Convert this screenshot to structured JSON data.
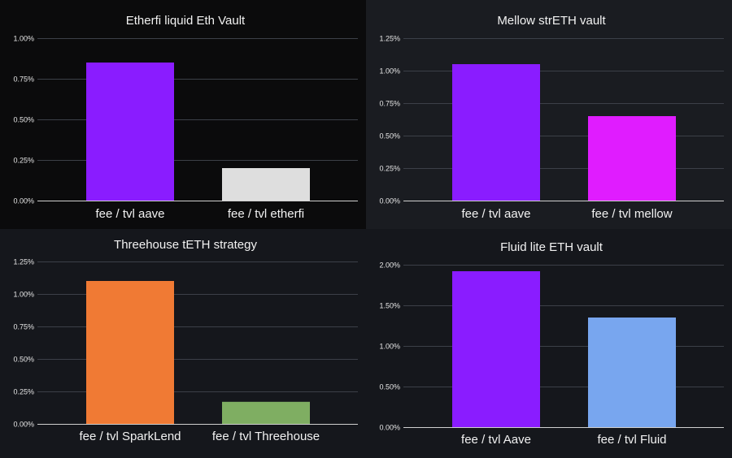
{
  "chart_data": [
    {
      "type": "bar",
      "title": "Etherfi liquid Eth Vault",
      "categories": [
        "fee / tvl aave",
        "fee / tvl etherfi"
      ],
      "values": [
        0.85,
        0.2
      ],
      "colors": [
        "#8a1cff",
        "#dedede"
      ],
      "ylim": [
        0,
        1.0
      ],
      "yticks": [
        "0.00%",
        "0.25%",
        "0.50%",
        "0.75%",
        "1.00%"
      ],
      "xlabel": "",
      "ylabel": "",
      "grid": true,
      "legend": "none"
    },
    {
      "type": "bar",
      "title": "Mellow strETH vault",
      "categories": [
        "fee / tvl aave",
        "fee / tvl mellow"
      ],
      "values": [
        1.05,
        0.65
      ],
      "colors": [
        "#8a1cff",
        "#e01cff"
      ],
      "ylim": [
        0,
        1.25
      ],
      "yticks": [
        "0.00%",
        "0.25%",
        "0.50%",
        "0.75%",
        "1.00%",
        "1.25%"
      ],
      "xlabel": "",
      "ylabel": "",
      "grid": true,
      "legend": "none"
    },
    {
      "type": "bar",
      "title": "Threehouse tETH strategy",
      "categories": [
        "fee / tvl SparkLend",
        "fee / tvl Threehouse"
      ],
      "values": [
        1.1,
        0.17
      ],
      "colors": [
        "#f07a34",
        "#7fae62"
      ],
      "ylim": [
        0,
        1.25
      ],
      "yticks": [
        "0.00%",
        "0.25%",
        "0.50%",
        "0.75%",
        "1.00%",
        "1.25%"
      ],
      "xlabel": "",
      "ylabel": "",
      "grid": true,
      "legend": "none"
    },
    {
      "type": "bar",
      "title": "Fluid lite ETH vault",
      "categories": [
        "fee / tvl Aave",
        "fee / tvl Fluid"
      ],
      "values": [
        1.92,
        1.35
      ],
      "colors": [
        "#8a1cff",
        "#78a6ef"
      ],
      "ylim": [
        0,
        2.0
      ],
      "yticks": [
        "0.00%",
        "0.50%",
        "1.00%",
        "1.50%",
        "2.00%"
      ],
      "xlabel": "",
      "ylabel": "",
      "grid": true,
      "legend": "none"
    }
  ]
}
